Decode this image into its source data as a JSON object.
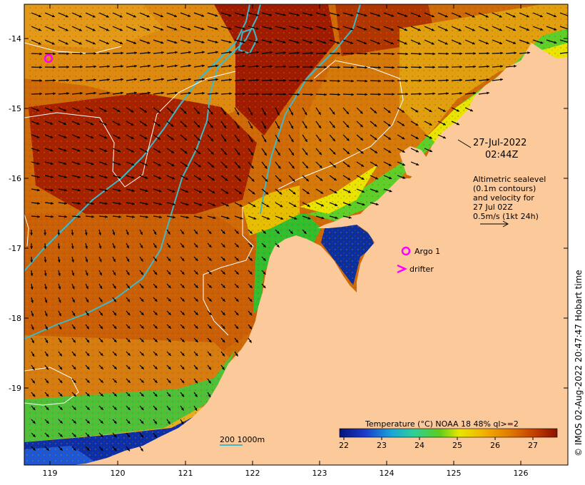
{
  "map": {
    "lon_range": [
      118.6,
      126.7
    ],
    "lat_range": [
      -20.1,
      -13.55
    ],
    "lon_ticks": [
      "119",
      "120",
      "121",
      "122",
      "123",
      "124",
      "125",
      "126"
    ],
    "lat_ticks": [
      "-14",
      "-15",
      "-16",
      "-17",
      "-18",
      "-19"
    ],
    "date_line1": "27-Jul-2022",
    "date_line2": "02:44Z",
    "legend_notes": [
      "Altimetric sealevel",
      "(0.1m contours)",
      "and velocity for",
      "27 Jul 02Z",
      "0.5m/s (1kt 24h)"
    ],
    "argo_label": "Argo 1",
    "drifter_label": "drifter",
    "scale_label": "200  1000m",
    "colorbar_title": "Temperature (°C) NOAA 18 48% ql>=2",
    "colorbar_ticks": [
      "22",
      "23",
      "24",
      "25",
      "26",
      "27"
    ],
    "credit": "© IMOS 02-Aug-2022 20:47:47 Hobart time",
    "colors": {
      "land": "#fcc99a",
      "warm": "#9e1a00",
      "mid": "#d16a00",
      "orange": "#e69a10",
      "yellow": "#e8e600",
      "green": "#2fbf2f",
      "cyan": "#28c8d8",
      "blue": "#0a2a9e",
      "contour": "#ffffff",
      "isobath": "#3fb8c8",
      "argo": "#ff00ff"
    }
  }
}
